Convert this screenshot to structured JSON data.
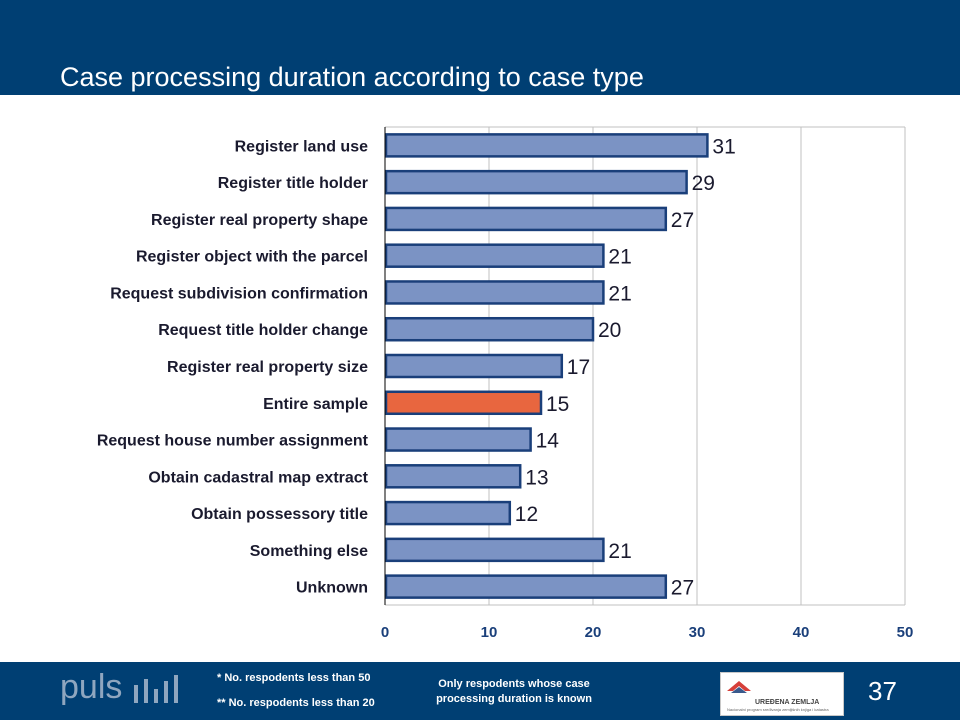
{
  "slide": {
    "title": "Case processing duration according to case type",
    "page_number": "37",
    "brand": "puls",
    "notes": {
      "note1": "* No. respodents less than 50",
      "note2": "** No. respodents less than 20",
      "note3": "Only respodents whose case processing duration is known"
    },
    "logo_text": "UREĐENA ZEMLJA",
    "logo_subtext": "Nacionalni program sređivanja zemljišnih knjiga i katastra"
  },
  "colors": {
    "header_bg": "#003f73",
    "bar_default": "#7b93c4",
    "bar_border": "#1a3f7a",
    "bar_highlight": "#e8663f",
    "grid": "#c0c0c0"
  },
  "chart_data": {
    "type": "bar",
    "orientation": "horizontal",
    "categories": [
      "Register land use",
      "Register title holder",
      "Register real property shape",
      "Register object with the parcel",
      "Request subdivision confirmation",
      "Request title holder change",
      "Register real property size",
      "Entire sample",
      "Request house number assignment",
      "Obtain cadastral map extract",
      "Obtain possessory title",
      "Something else",
      "Unknown"
    ],
    "values": [
      31,
      29,
      27,
      21,
      21,
      20,
      17,
      15,
      14,
      13,
      12,
      21,
      27
    ],
    "highlight": "Entire sample",
    "xlim": [
      0,
      50
    ],
    "xticks": [
      0,
      10,
      20,
      30,
      40,
      50
    ],
    "grid": true,
    "legend": "none"
  }
}
